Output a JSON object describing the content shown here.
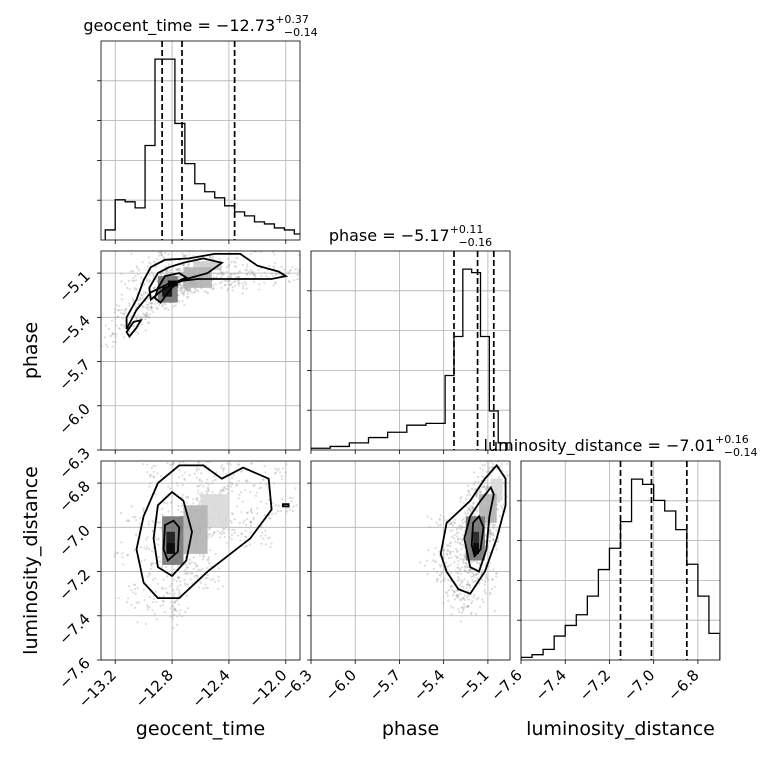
{
  "chart_data": {
    "type": "corner",
    "parameters": [
      "geocent_time",
      "phase",
      "luminosity_distance"
    ],
    "axis_labels": {
      "geocent_time": "geocent_time",
      "phase": "phase",
      "luminosity_distance": "luminosity_distance"
    },
    "titles": [
      {
        "param": "geocent_time",
        "prefix": "geocent_time = ",
        "median": "−12.73",
        "plus": "+0.37",
        "minus": "−0.14"
      },
      {
        "param": "phase",
        "prefix": "phase = ",
        "median": "−5.17",
        "plus": "+0.11",
        "minus": "−0.16"
      },
      {
        "param": "luminosity_distance",
        "prefix": "luminosity_distance = ",
        "median": "−7.01",
        "plus": "+0.16",
        "minus": "−0.14"
      }
    ],
    "ranges": {
      "geocent_time": [
        -13.3,
        -11.9
      ],
      "phase": [
        -6.3,
        -4.95
      ],
      "luminosity_distance": [
        -7.6,
        -6.7
      ]
    },
    "ticks": {
      "geocent_time": [
        -13.2,
        -12.8,
        -12.4,
        -12.0
      ],
      "phase": [
        -6.3,
        -6.0,
        -5.7,
        -5.4,
        -5.1
      ],
      "luminosity_distance": [
        -7.6,
        -7.4,
        -7.2,
        -7.0,
        -6.8
      ]
    },
    "tick_labels": {
      "geocent_time": [
        "−13.2",
        "−12.8",
        "−12.4",
        "−12.0"
      ],
      "phase": [
        "−6.3",
        "−6.0",
        "−5.7",
        "−5.4",
        "−5.1"
      ],
      "luminosity_distance": [
        "−7.6",
        "−7.4",
        "−7.2",
        "−7.0",
        "−6.8"
      ]
    },
    "grid": true,
    "quantiles": {
      "geocent_time": [
        -12.87,
        -12.73,
        -12.36
      ],
      "phase": [
        -5.33,
        -5.17,
        -5.06
      ],
      "luminosity_distance": [
        -7.15,
        -7.01,
        -6.85
      ]
    },
    "histograms": {
      "geocent_time": {
        "edges": [
          -13.27,
          -13.2,
          -13.13,
          -13.06,
          -12.99,
          -12.92,
          -12.85,
          -12.78,
          -12.71,
          -12.64,
          -12.57,
          -12.5,
          -12.43,
          -12.36,
          -12.29,
          -12.22,
          -12.15,
          -12.08,
          -12.01,
          -11.94,
          -11.87,
          -11.8
        ],
        "counts": [
          2.5,
          10,
          9.5,
          8,
          23.5,
          45,
          45,
          29,
          19,
          14,
          12,
          10.5,
          8.5,
          7,
          6,
          4.5,
          4,
          3,
          2.5,
          1.5,
          1
        ]
      },
      "phase": {
        "edges": [
          -6.3,
          -6.17,
          -6.04,
          -5.91,
          -5.78,
          -5.65,
          -5.52,
          -5.39,
          -5.33,
          -5.27,
          -5.21,
          -5.15,
          -5.09,
          -5.03,
          -4.97
        ],
        "counts": [
          0.5,
          1,
          2,
          3.5,
          5,
          7,
          7.5,
          21,
          32,
          51,
          50,
          32,
          11,
          2
        ]
      },
      "luminosity_distance": {
        "edges": [
          -7.6,
          -7.55,
          -7.5,
          -7.45,
          -7.4,
          -7.35,
          -7.3,
          -7.25,
          -7.2,
          -7.15,
          -7.1,
          -7.05,
          -7.0,
          -6.95,
          -6.9,
          -6.85,
          -6.8,
          -6.75,
          -6.7
        ],
        "counts": [
          0.5,
          1,
          2,
          4.5,
          6.5,
          8.5,
          12,
          17,
          21,
          26,
          34,
          33,
          30,
          28,
          24.5,
          18,
          12,
          5
        ]
      }
    },
    "scatter_panels": [
      {
        "x": "geocent_time",
        "y": "phase",
        "hist2d": [
          {
            "x": [
              -12.83,
              -12.76
            ],
            "y": [
              -5.19,
              -5.15
            ],
            "level": 1.0
          },
          {
            "x": [
              -12.87,
              -12.8
            ],
            "y": [
              -5.26,
              -5.19
            ],
            "level": 0.95
          },
          {
            "x": [
              -12.9,
              -12.76
            ],
            "y": [
              -5.3,
              -5.12
            ],
            "level": 0.55
          },
          {
            "x": [
              -12.72,
              -12.52
            ],
            "y": [
              -5.2,
              -5.06
            ],
            "level": 0.3
          },
          {
            "x": [
              -12.65,
              -12.45
            ],
            "y": [
              -5.08,
              -5.02
            ],
            "level": 0.2
          }
        ],
        "contours": [
          [
            [
              -12.88,
              -5.3
            ],
            [
              -12.82,
              -5.22
            ],
            [
              -12.75,
              -5.15
            ],
            [
              -12.7,
              -5.13
            ],
            [
              -12.75,
              -5.1
            ],
            [
              -12.85,
              -5.12
            ],
            [
              -12.9,
              -5.2
            ],
            [
              -12.92,
              -5.27
            ],
            [
              -12.88,
              -5.3
            ]
          ],
          [
            [
              -12.95,
              -5.28
            ],
            [
              -12.85,
              -5.2
            ],
            [
              -12.7,
              -5.14
            ],
            [
              -12.55,
              -5.1
            ],
            [
              -12.45,
              -5.03
            ],
            [
              -12.58,
              -5.0
            ],
            [
              -12.72,
              -5.03
            ],
            [
              -12.82,
              -5.06
            ],
            [
              -12.9,
              -5.1
            ],
            [
              -12.96,
              -5.2
            ],
            [
              -12.95,
              -5.28
            ]
          ],
          [
            [
              -13.12,
              -5.48
            ],
            [
              -13.05,
              -5.35
            ],
            [
              -12.95,
              -5.23
            ],
            [
              -12.8,
              -5.16
            ],
            [
              -12.62,
              -5.14
            ],
            [
              -12.4,
              -5.14
            ],
            [
              -12.1,
              -5.14
            ],
            [
              -12.0,
              -5.12
            ],
            [
              -12.05,
              -5.09
            ],
            [
              -12.2,
              -5.05
            ],
            [
              -12.32,
              -4.97
            ],
            [
              -12.5,
              -4.97
            ],
            [
              -12.68,
              -5.0
            ],
            [
              -12.85,
              -5.01
            ],
            [
              -12.95,
              -5.06
            ],
            [
              -13.0,
              -5.15
            ],
            [
              -13.05,
              -5.28
            ],
            [
              -13.12,
              -5.4
            ],
            [
              -13.12,
              -5.48
            ]
          ],
          [
            [
              -13.1,
              -5.53
            ],
            [
              -13.05,
              -5.47
            ],
            [
              -13.02,
              -5.42
            ],
            [
              -13.07,
              -5.43
            ],
            [
              -13.12,
              -5.5
            ],
            [
              -13.1,
              -5.53
            ]
          ]
        ]
      },
      {
        "x": "geocent_time",
        "y": "luminosity_distance",
        "hist2d": [
          {
            "x": [
              -12.84,
              -12.78
            ],
            "y": [
              -7.12,
              -7.07
            ],
            "level": 1.0
          },
          {
            "x": [
              -12.84,
              -12.78
            ],
            "y": [
              -7.07,
              -7.02
            ],
            "level": 0.9
          },
          {
            "x": [
              -12.87,
              -12.72
            ],
            "y": [
              -7.17,
              -6.95
            ],
            "level": 0.55
          },
          {
            "x": [
              -12.72,
              -12.55
            ],
            "y": [
              -7.12,
              -6.9
            ],
            "level": 0.3
          },
          {
            "x": [
              -12.6,
              -12.4
            ],
            "y": [
              -7.0,
              -6.85
            ],
            "level": 0.15
          }
        ],
        "contours": [
          [
            [
              -12.83,
              -7.15
            ],
            [
              -12.76,
              -7.11
            ],
            [
              -12.75,
              -7.0
            ],
            [
              -12.79,
              -6.97
            ],
            [
              -12.85,
              -6.99
            ],
            [
              -12.86,
              -7.1
            ],
            [
              -12.83,
              -7.15
            ]
          ],
          [
            [
              -12.8,
              -7.22
            ],
            [
              -12.7,
              -7.15
            ],
            [
              -12.66,
              -7.02
            ],
            [
              -12.72,
              -6.88
            ],
            [
              -12.8,
              -6.84
            ],
            [
              -12.9,
              -6.9
            ],
            [
              -12.93,
              -7.05
            ],
            [
              -12.9,
              -7.18
            ],
            [
              -12.8,
              -7.22
            ]
          ],
          [
            [
              -12.75,
              -7.32
            ],
            [
              -12.55,
              -7.2
            ],
            [
              -12.25,
              -7.05
            ],
            [
              -12.1,
              -6.92
            ],
            [
              -12.12,
              -6.78
            ],
            [
              -12.3,
              -6.73
            ],
            [
              -12.45,
              -6.78
            ],
            [
              -12.58,
              -6.72
            ],
            [
              -12.75,
              -6.72
            ],
            [
              -12.9,
              -6.8
            ],
            [
              -13.0,
              -6.95
            ],
            [
              -13.05,
              -7.1
            ],
            [
              -13.0,
              -7.25
            ],
            [
              -12.9,
              -7.32
            ],
            [
              -12.75,
              -7.32
            ]
          ],
          [
            [
              -12.02,
              -6.905
            ],
            [
              -11.98,
              -6.905
            ],
            [
              -11.98,
              -6.895
            ],
            [
              -12.02,
              -6.895
            ],
            [
              -12.02,
              -6.905
            ]
          ]
        ]
      },
      {
        "x": "phase",
        "y": "luminosity_distance",
        "hist2d": [
          {
            "x": [
              -5.2,
              -5.16
            ],
            "y": [
              -7.12,
              -7.07
            ],
            "level": 1.0
          },
          {
            "x": [
              -5.2,
              -5.16
            ],
            "y": [
              -7.07,
              -7.02
            ],
            "level": 0.85
          },
          {
            "x": [
              -5.25,
              -5.12
            ],
            "y": [
              -7.15,
              -6.95
            ],
            "level": 0.55
          },
          {
            "x": [
              -5.16,
              -5.04
            ],
            "y": [
              -6.98,
              -6.85
            ],
            "level": 0.3
          },
          {
            "x": [
              -5.08,
              -5.0
            ],
            "y": [
              -6.88,
              -6.78
            ],
            "level": 0.15
          }
        ],
        "contours": [
          [
            [
              -5.19,
              -7.13
            ],
            [
              -5.15,
              -7.1
            ],
            [
              -5.13,
              -7.0
            ],
            [
              -5.16,
              -6.95
            ],
            [
              -5.2,
              -6.98
            ],
            [
              -5.21,
              -7.08
            ],
            [
              -5.19,
              -7.13
            ]
          ],
          [
            [
              -5.16,
              -7.2
            ],
            [
              -5.11,
              -7.1
            ],
            [
              -5.09,
              -6.95
            ],
            [
              -5.06,
              -6.85
            ],
            [
              -5.08,
              -6.82
            ],
            [
              -5.15,
              -6.88
            ],
            [
              -5.22,
              -6.95
            ],
            [
              -5.26,
              -7.05
            ],
            [
              -5.22,
              -7.18
            ],
            [
              -5.16,
              -7.2
            ]
          ],
          [
            [
              -5.22,
              -7.3
            ],
            [
              -5.12,
              -7.2
            ],
            [
              -5.04,
              -7.05
            ],
            [
              -4.98,
              -6.9
            ],
            [
              -4.98,
              -6.78
            ],
            [
              -5.04,
              -6.72
            ],
            [
              -5.12,
              -6.78
            ],
            [
              -5.22,
              -6.88
            ],
            [
              -5.38,
              -6.98
            ],
            [
              -5.42,
              -7.12
            ],
            [
              -5.38,
              -7.2
            ],
            [
              -5.3,
              -7.28
            ],
            [
              -5.22,
              -7.3
            ]
          ]
        ]
      }
    ]
  }
}
